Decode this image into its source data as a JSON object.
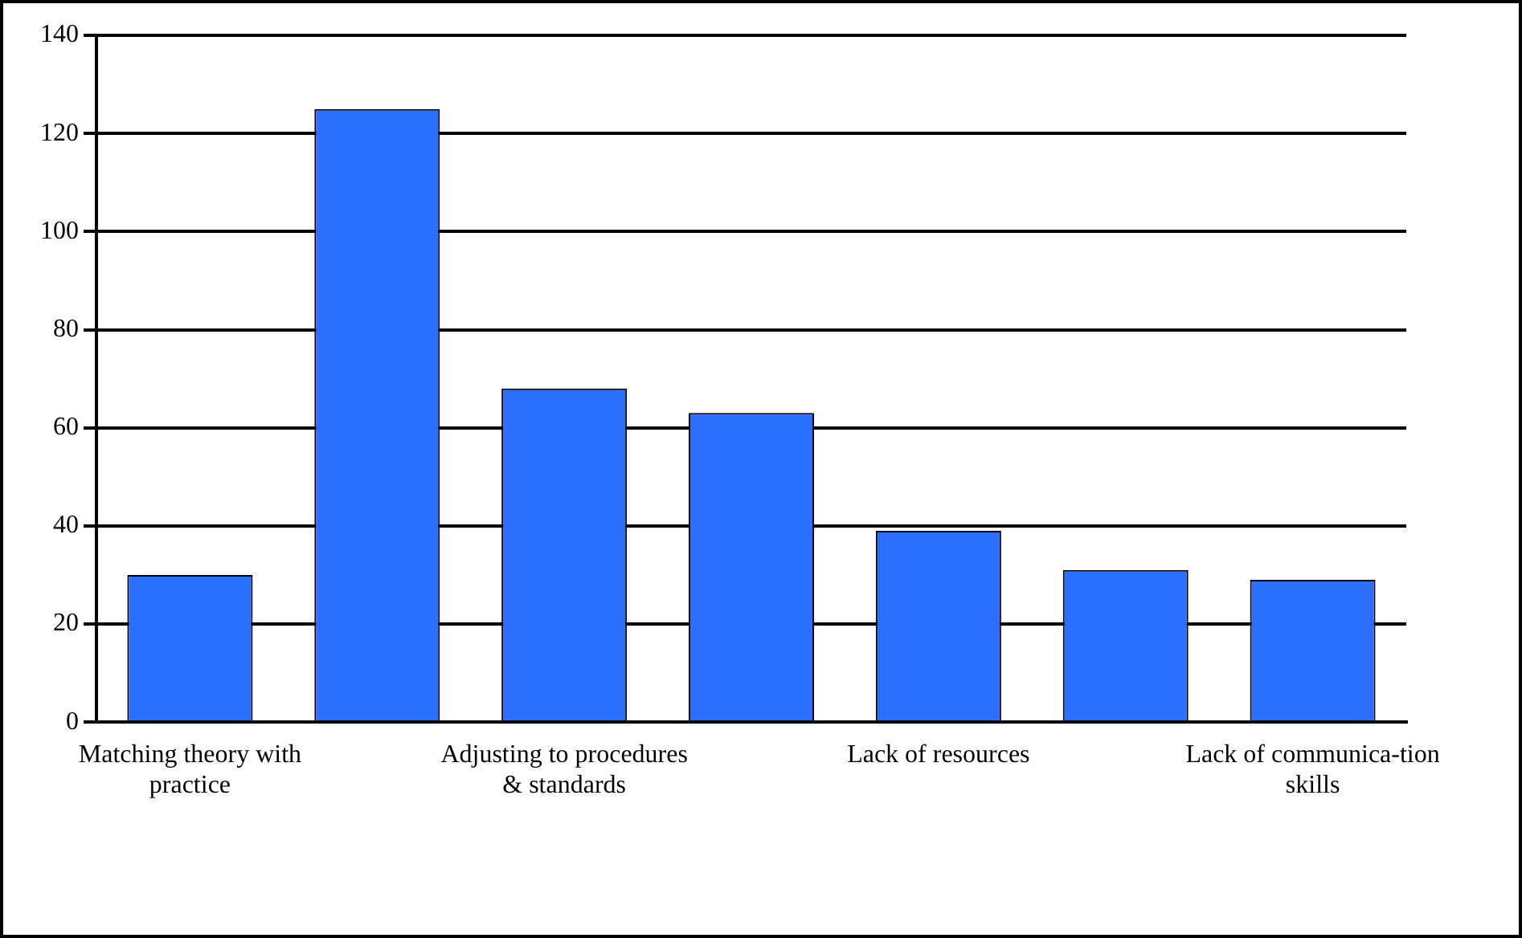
{
  "chart_data": {
    "type": "bar",
    "categories": [
      "Matching theory with practice",
      null,
      "Adjusting to procedures & standards",
      null,
      "Lack of resources",
      null,
      "Lack of communica-tion skills"
    ],
    "values": [
      30,
      125,
      68,
      63,
      39,
      31,
      29
    ],
    "color": "#2b6fff",
    "ylim": [
      0,
      140
    ],
    "yticks": [
      0,
      20,
      40,
      60,
      80,
      100,
      120,
      140
    ],
    "grid": "y"
  }
}
